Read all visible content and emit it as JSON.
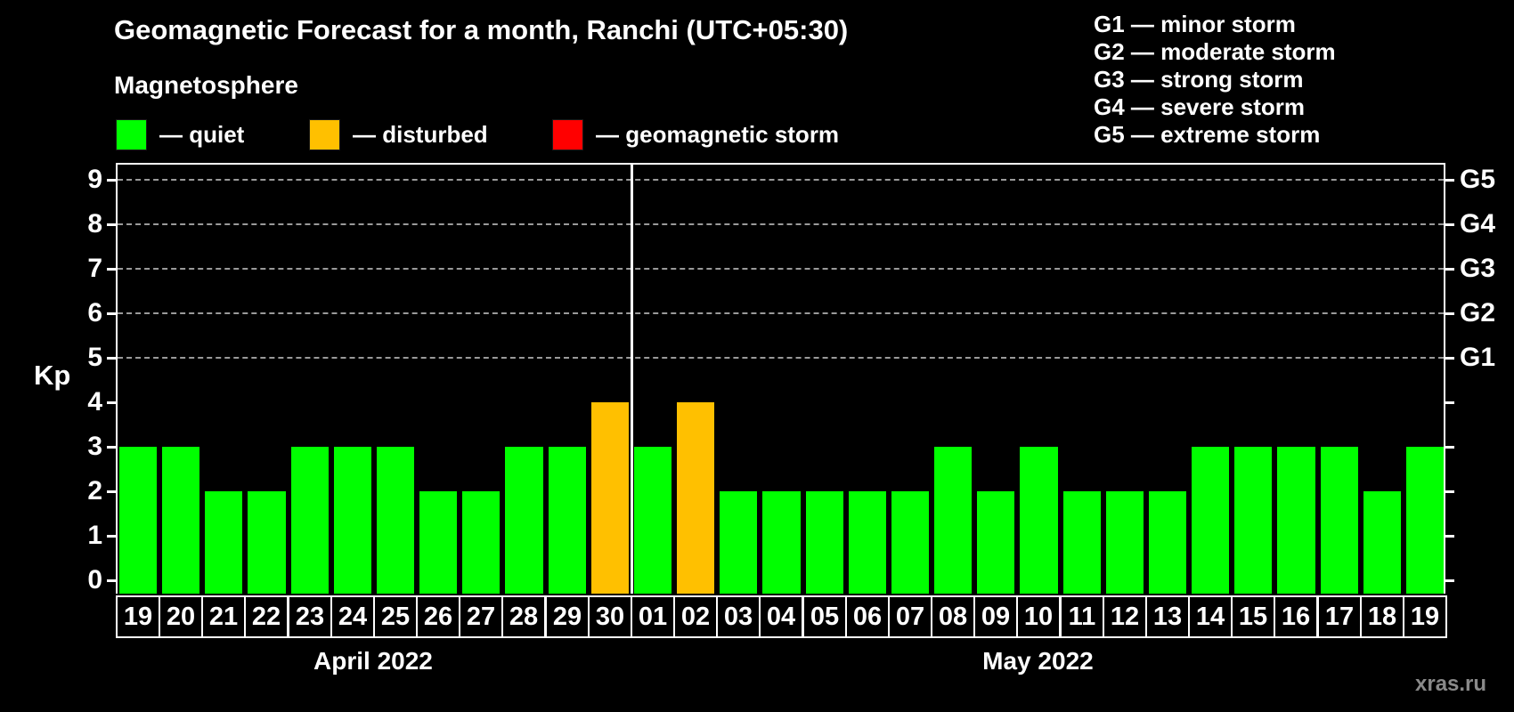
{
  "title": "Geomagnetic Forecast for a month, Ranchi (UTC+05:30)",
  "subtitle": "Magnetosphere",
  "legend": {
    "items": [
      {
        "key": "quiet",
        "label": "— quiet",
        "color": "#00ff00"
      },
      {
        "key": "disturbed",
        "label": "— disturbed",
        "color": "#ffc000"
      },
      {
        "key": "storm",
        "label": "— geomagnetic storm",
        "color": "#ff0000"
      }
    ]
  },
  "g_legend": [
    "G1 — minor storm",
    "G2 — moderate storm",
    "G3 — strong storm",
    "G4 — severe storm",
    "G5 — extreme storm"
  ],
  "watermark": "xras.ru",
  "chart_data": {
    "type": "bar",
    "title": "Geomagnetic Forecast for a month, Ranchi (UTC+05:30)",
    "ylabel": "Kp",
    "ylim": [
      0,
      9
    ],
    "yticks": [
      0,
      1,
      2,
      3,
      4,
      5,
      6,
      7,
      8,
      9
    ],
    "grid_levels_kp": [
      5,
      6,
      7,
      8,
      9
    ],
    "right_axis_labels": [
      {
        "kp": 9,
        "label": "G5"
      },
      {
        "kp": 8,
        "label": "G4"
      },
      {
        "kp": 7,
        "label": "G3"
      },
      {
        "kp": 6,
        "label": "G2"
      },
      {
        "kp": 5,
        "label": "G1"
      }
    ],
    "categories": [
      "19",
      "20",
      "21",
      "22",
      "23",
      "24",
      "25",
      "26",
      "27",
      "28",
      "29",
      "30",
      "01",
      "02",
      "03",
      "04",
      "05",
      "06",
      "07",
      "08",
      "09",
      "10",
      "11",
      "12",
      "13",
      "14",
      "15",
      "16",
      "17",
      "18",
      "19"
    ],
    "values": [
      3,
      3,
      2,
      2,
      3,
      3,
      3,
      2,
      2,
      3,
      3,
      4,
      3,
      4,
      2,
      2,
      2,
      2,
      2,
      3,
      2,
      3,
      2,
      2,
      2,
      3,
      3,
      3,
      3,
      2,
      3
    ],
    "statuses": [
      "quiet",
      "quiet",
      "quiet",
      "quiet",
      "quiet",
      "quiet",
      "quiet",
      "quiet",
      "quiet",
      "quiet",
      "quiet",
      "disturbed",
      "quiet",
      "disturbed",
      "quiet",
      "quiet",
      "quiet",
      "quiet",
      "quiet",
      "quiet",
      "quiet",
      "quiet",
      "quiet",
      "quiet",
      "quiet",
      "quiet",
      "quiet",
      "quiet",
      "quiet",
      "quiet",
      "quiet"
    ],
    "status_colors": {
      "quiet": "#00ff00",
      "disturbed": "#ffc000",
      "storm": "#ff0000"
    },
    "month_split_index": 12,
    "months": [
      {
        "label": "April 2022"
      },
      {
        "label": "May 2022"
      }
    ],
    "legend_position": "top",
    "grid": "dashed horizontal at G-storm levels only",
    "background": "#000000"
  }
}
